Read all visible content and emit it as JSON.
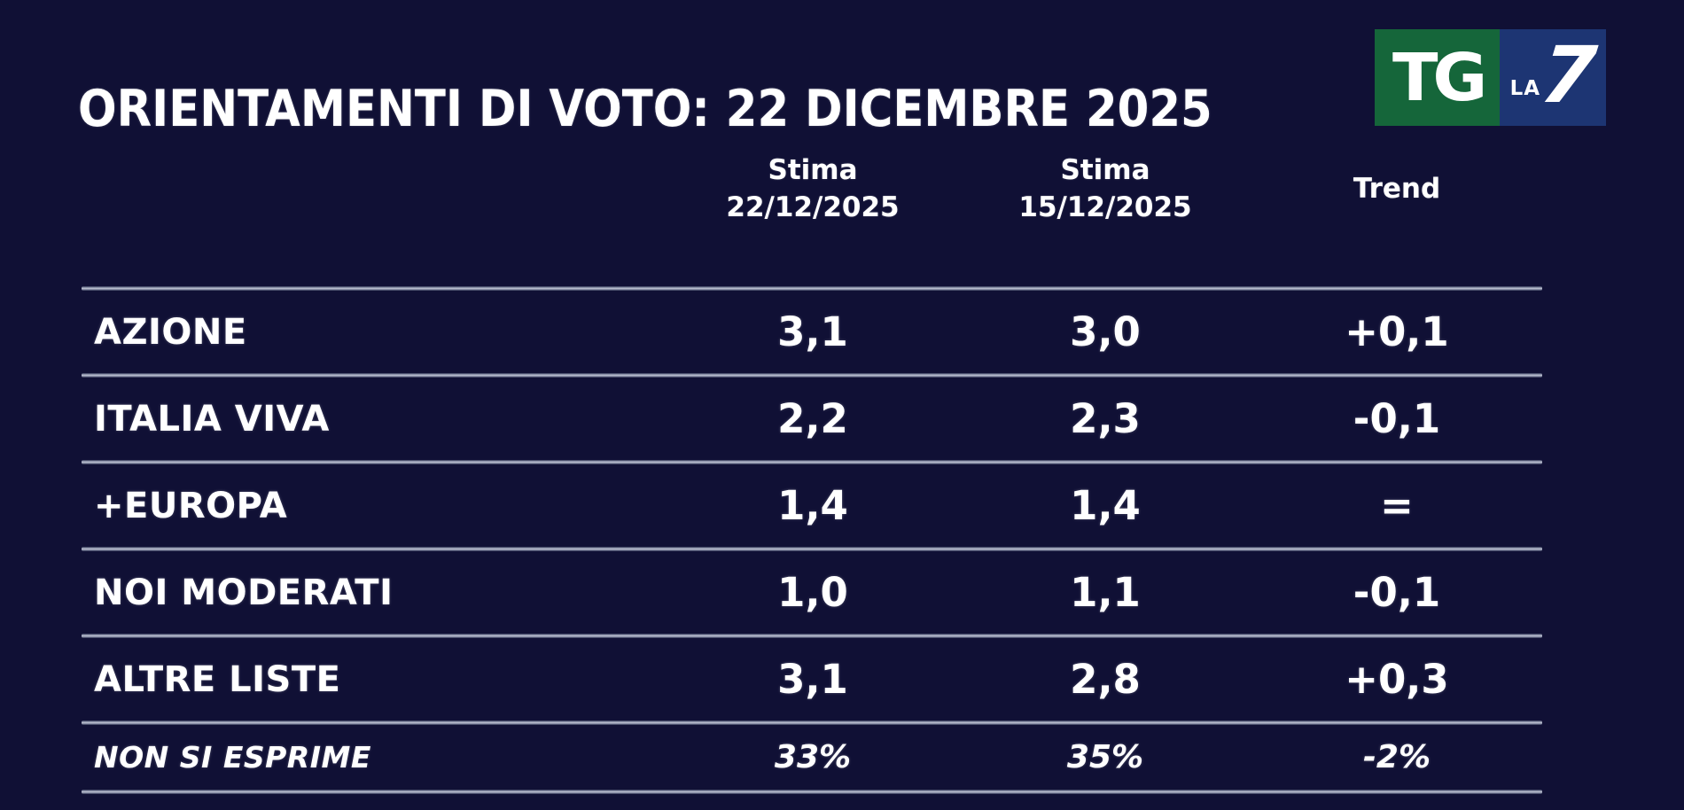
{
  "title": "ORIENTAMENTI DI VOTO: 22 DICEMBRE 2025",
  "logo": {
    "tg": "TG",
    "la": "LA",
    "seven": "7"
  },
  "table": {
    "columns": [
      {
        "line1": "Stima",
        "line2": "22/12/2025"
      },
      {
        "line1": "Stima",
        "line2": "15/12/2025"
      },
      {
        "line1": "Trend",
        "line2": ""
      }
    ],
    "rows": [
      {
        "party": "AZIONE",
        "stima_current": "3,1",
        "stima_previous": "3,0",
        "trend": "+0,1"
      },
      {
        "party": "ITALIA VIVA",
        "stima_current": "2,2",
        "stima_previous": "2,3",
        "trend": "-0,1"
      },
      {
        "party": "+EUROPA",
        "stima_current": "1,4",
        "stima_previous": "1,4",
        "trend": "="
      },
      {
        "party": "NOI MODERATI",
        "stima_current": "1,0",
        "stima_previous": "1,1",
        "trend": "-0,1"
      },
      {
        "party": "ALTRE LISTE",
        "stima_current": "3,1",
        "stima_previous": "2,8",
        "trend": "+0,3"
      }
    ],
    "footer": {
      "party": "NON SI ESPRIME",
      "stima_current": "33%",
      "stima_previous": "35%",
      "trend": "-2%"
    }
  },
  "colors": {
    "background": "#101035",
    "text": "#ffffff",
    "separator_line": "#c2c7d6",
    "logo_green": "#15663a",
    "logo_blue": "#1d3573"
  },
  "chart_data": {
    "type": "table",
    "title": "ORIENTAMENTI DI VOTO: 22 DICEMBRE 2025",
    "columns": [
      "",
      "Stima 22/12/2025",
      "Stima 15/12/2025",
      "Trend"
    ],
    "rows": [
      [
        "AZIONE",
        "3,1",
        "3,0",
        "+0,1"
      ],
      [
        "ITALIA VIVA",
        "2,2",
        "2,3",
        "-0,1"
      ],
      [
        "+EUROPA",
        "1,4",
        "1,4",
        "="
      ],
      [
        "NOI MODERATI",
        "1,0",
        "1,1",
        "-0,1"
      ],
      [
        "ALTRE LISTE",
        "3,1",
        "2,8",
        "+0,3"
      ],
      [
        "NON SI ESPRIME",
        "33%",
        "35%",
        "-2%"
      ]
    ],
    "values_numeric": {
      "stima_22_12_2025": [
        3.1,
        2.2,
        1.4,
        1.0,
        3.1
      ],
      "stima_15_12_2025": [
        3.0,
        2.3,
        1.4,
        1.1,
        2.8
      ],
      "trend": [
        0.1,
        -0.1,
        0.0,
        -0.1,
        0.3
      ],
      "non_si_esprime": {
        "current_pct": 33,
        "previous_pct": 35,
        "trend_pct": -2
      }
    }
  }
}
